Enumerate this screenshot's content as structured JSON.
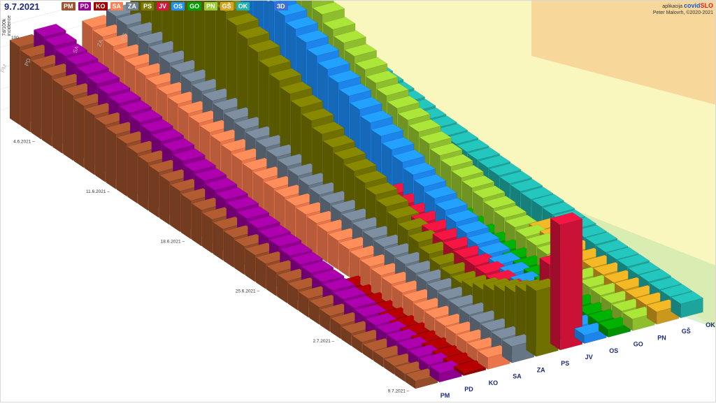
{
  "header": {
    "date": "9.7.2021",
    "ylabel_lines": [
      "7d/100k",
      "incidence"
    ],
    "view_button": "3D"
  },
  "credit": {
    "line1_prefix": "aplikacija",
    "brand_a": "covid",
    "brand_b": "SLO",
    "line2": "Peter Malovrh, ©2020-2021"
  },
  "legend": [
    {
      "label": "PM",
      "color": "#a0522d"
    },
    {
      "label": "PD",
      "color": "#9b009b"
    },
    {
      "label": "KO",
      "color": "#a50000"
    },
    {
      "label": "SA",
      "color": "#ff7f50"
    },
    {
      "label": "ZA",
      "color": "#708090"
    },
    {
      "label": "PS",
      "color": "#7a7a00"
    },
    {
      "label": "JV",
      "color": "#dc143c"
    },
    {
      "label": "OS",
      "color": "#1e90ff"
    },
    {
      "label": "GO",
      "color": "#00a000"
    },
    {
      "label": "PN",
      "color": "#9acd32"
    },
    {
      "label": "GŠ",
      "color": "#daa520"
    },
    {
      "label": "OK",
      "color": "#20b2aa"
    }
  ],
  "chart_data": {
    "type": "bar",
    "subtype": "3d-bar-matrix",
    "ylabel": "7d/100k incidence",
    "ytick_labels": [
      "100"
    ],
    "date_tick_labels": [
      "4.6.2021",
      "11.6.2021",
      "18.6.2021",
      "25.6.2021",
      "2.7.2021",
      "9.7.2021"
    ],
    "region_labels": [
      "PM",
      "PD",
      "KO",
      "SA",
      "ZA",
      "PS",
      "JV",
      "OS",
      "GO",
      "PN",
      "GŠ",
      "OK"
    ],
    "back_region_labels": [
      "PM",
      "PD",
      "SA",
      "ZA",
      "PS",
      "OK"
    ],
    "series": [
      {
        "region": "PM",
        "values": [
          100,
          96,
          92,
          90,
          86,
          83,
          79,
          76,
          73,
          70,
          67,
          64,
          61,
          58,
          55,
          52,
          49,
          46,
          43,
          40,
          38,
          36,
          34,
          32,
          30,
          28,
          26,
          24,
          22,
          20,
          18,
          16,
          14,
          12,
          12,
          11,
          10,
          10
        ]
      },
      {
        "region": "PD",
        "values": [
          105,
          102,
          98,
          96,
          93,
          90,
          86,
          83,
          80,
          77,
          74,
          71,
          68,
          64,
          60,
          57,
          54,
          51,
          48,
          45,
          42,
          39,
          37,
          34,
          32,
          30,
          28,
          26,
          24,
          22,
          20,
          18,
          17,
          16,
          15,
          14,
          13,
          12
        ]
      },
      {
        "region": "KO",
        "values": [
          0,
          0,
          0,
          0,
          0,
          0,
          0,
          0,
          0,
          0,
          0,
          0,
          0,
          0,
          0,
          0,
          0,
          0,
          0,
          0,
          0,
          0,
          0,
          0,
          0,
          0,
          12,
          10,
          9,
          8,
          8,
          7,
          7,
          6,
          6,
          5,
          5,
          4
        ]
      },
      {
        "region": "SA",
        "values": [
          100,
          97,
          94,
          90,
          87,
          84,
          81,
          78,
          75,
          72,
          69,
          66,
          63,
          60,
          57,
          54,
          52,
          49,
          47,
          45,
          43,
          41,
          39,
          37,
          35,
          33,
          31,
          29,
          27,
          25,
          23,
          21,
          20,
          19,
          18,
          17,
          16,
          15
        ]
      },
      {
        "region": "ZA",
        "values": [
          106,
          104,
          101,
          98,
          95,
          92,
          89,
          86,
          83,
          80,
          77,
          74,
          71,
          68,
          66,
          63,
          60,
          57,
          54,
          51,
          49,
          47,
          45,
          43,
          41,
          39,
          37,
          35,
          33,
          31,
          29,
          27,
          26,
          25,
          24,
          23,
          22,
          21
        ]
      },
      {
        "region": "PS",
        "values": [
          210,
          208,
          206,
          204,
          200,
          196,
          190,
          184,
          176,
          168,
          160,
          152,
          142,
          134,
          126,
          118,
          110,
          102,
          94,
          88,
          82,
          76,
          70,
          64,
          58,
          52,
          46,
          40,
          35,
          32,
          30,
          34,
          40,
          48,
          56,
          64,
          74,
          84
        ]
      },
      {
        "region": "JV",
        "values": [
          0,
          0,
          0,
          0,
          0,
          0,
          0,
          0,
          0,
          0,
          0,
          0,
          0,
          0,
          0,
          0,
          0,
          0,
          0,
          0,
          0,
          52,
          48,
          45,
          44,
          42,
          40,
          38,
          36,
          35,
          34,
          32,
          30,
          28,
          30,
          40,
          100,
          160
        ]
      },
      {
        "region": "OS",
        "values": [
          220,
          216,
          210,
          206,
          200,
          194,
          188,
          180,
          172,
          164,
          156,
          148,
          140,
          132,
          124,
          116,
          108,
          100,
          92,
          84,
          77,
          70,
          64,
          58,
          52,
          46,
          41,
          36,
          32,
          28,
          25,
          22,
          20,
          18,
          16,
          14,
          12,
          11
        ]
      },
      {
        "region": "GO",
        "values": [
          0,
          0,
          0,
          0,
          0,
          0,
          0,
          0,
          0,
          0,
          0,
          0,
          0,
          0,
          38,
          36,
          34,
          32,
          30,
          28,
          26,
          25,
          24,
          22,
          21,
          20,
          19,
          18,
          17,
          16,
          15,
          14,
          14,
          13,
          12,
          11,
          11,
          10
        ]
      },
      {
        "region": "PN",
        "values": [
          260,
          250,
          210,
          190,
          180,
          170,
          160,
          150,
          140,
          130,
          122,
          114,
          106,
          98,
          91,
          84,
          78,
          72,
          66,
          60,
          55,
          50,
          46,
          42,
          38,
          35,
          32,
          29,
          27,
          25,
          23,
          21,
          20,
          19,
          18,
          17,
          16,
          15
        ]
      },
      {
        "region": "GŠ",
        "values": [
          0,
          0,
          0,
          0,
          0,
          0,
          0,
          0,
          0,
          0,
          0,
          0,
          0,
          0,
          0,
          0,
          0,
          0,
          0,
          0,
          0,
          0,
          0,
          0,
          0,
          0,
          20,
          20,
          19,
          19,
          18,
          18,
          18,
          17,
          17,
          16,
          16,
          16
        ]
      },
      {
        "region": "OK",
        "values": [
          60,
          58,
          56,
          54,
          52,
          50,
          48,
          46,
          44,
          42,
          40,
          38,
          36,
          34,
          33,
          32,
          31,
          30,
          29,
          28,
          27,
          26,
          25,
          24,
          24,
          23,
          22,
          22,
          21,
          21,
          20,
          20,
          20,
          19,
          19,
          18,
          18,
          18
        ]
      }
    ],
    "grid": true
  }
}
